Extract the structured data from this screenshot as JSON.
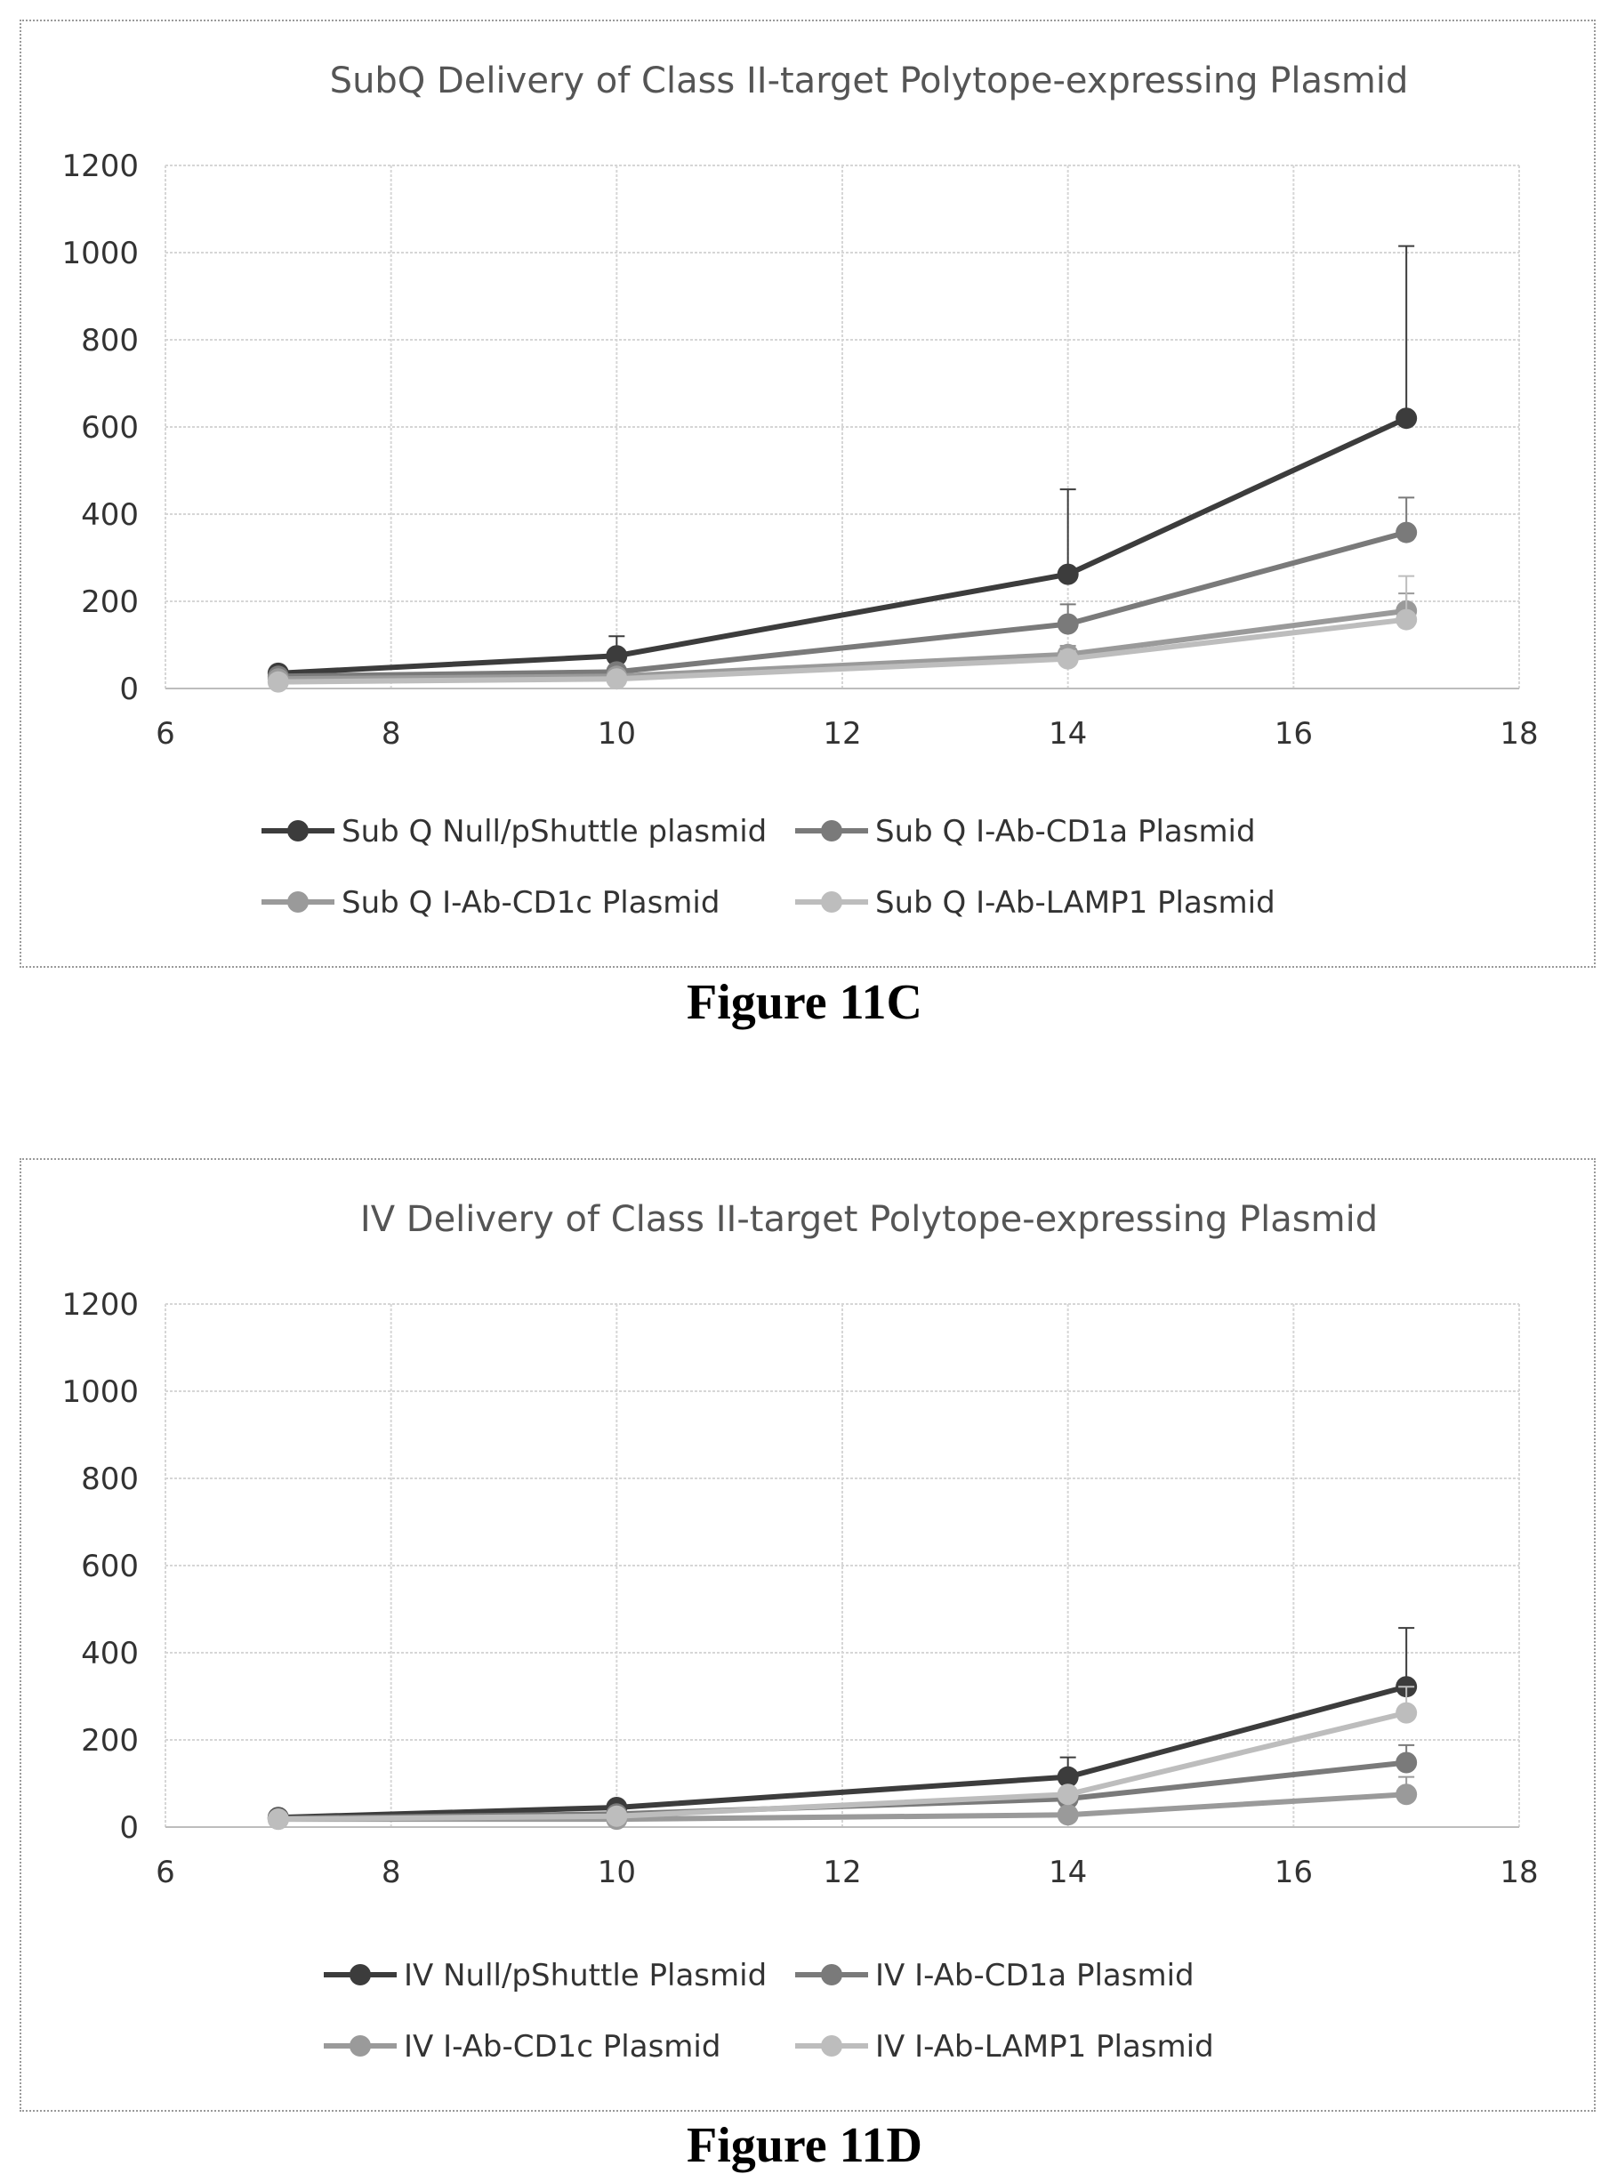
{
  "chart_data": [
    {
      "type": "line",
      "title": "SubQ Delivery of Class II-target Polytope-expressing Plasmid",
      "xlabel": "",
      "ylabel": "",
      "xlim": [
        6,
        18
      ],
      "ylim": [
        0,
        1200
      ],
      "xticks": [
        6,
        8,
        10,
        12,
        14,
        16,
        18
      ],
      "yticks": [
        0,
        200,
        400,
        600,
        800,
        1000,
        1200
      ],
      "grid": true,
      "legend_position": "bottom",
      "x": [
        7,
        10,
        14,
        17
      ],
      "series": [
        {
          "name": "Sub Q Null/pShuttle plasmid",
          "values": [
            35,
            75,
            262,
            620
          ],
          "error": [
            12,
            45,
            195,
            395
          ],
          "color": "#3c3c3c"
        },
        {
          "name": "Sub Q I-Ab-CD1a Plasmid",
          "values": [
            28,
            38,
            148,
            358
          ],
          "error": [
            8,
            15,
            45,
            80
          ],
          "color": "#7a7a7a"
        },
        {
          "name": "Sub Q I-Ab-CD1c Plasmid",
          "values": [
            22,
            28,
            78,
            178
          ],
          "error": [
            6,
            10,
            20,
            40
          ],
          "color": "#9a9a9a"
        },
        {
          "name": "Sub Q I-Ab-LAMP1 Plasmid",
          "values": [
            15,
            22,
            68,
            158
          ],
          "error": [
            5,
            8,
            18,
            100
          ],
          "color": "#bdbdbd"
        }
      ],
      "caption": "Figure 11C"
    },
    {
      "type": "line",
      "title": "IV Delivery of Class II-target Polytope-expressing Plasmid",
      "xlabel": "",
      "ylabel": "",
      "xlim": [
        6,
        18
      ],
      "ylim": [
        0,
        1200
      ],
      "xticks": [
        6,
        8,
        10,
        12,
        14,
        16,
        18
      ],
      "yticks": [
        0,
        200,
        400,
        600,
        800,
        1000,
        1200
      ],
      "grid": true,
      "legend_position": "bottom",
      "x": [
        7,
        10,
        14,
        17
      ],
      "series": [
        {
          "name": "IV Null/pShuttle Plasmid",
          "values": [
            22,
            45,
            115,
            322
          ],
          "error": [
            6,
            12,
            45,
            135
          ],
          "color": "#3c3c3c"
        },
        {
          "name": "IV I-Ab-CD1a Plasmid",
          "values": [
            20,
            30,
            65,
            148
          ],
          "error": [
            5,
            8,
            15,
            40
          ],
          "color": "#7a7a7a"
        },
        {
          "name": "IV I-Ab-CD1c Plasmid",
          "values": [
            18,
            18,
            28,
            75
          ],
          "error": [
            4,
            6,
            8,
            40
          ],
          "color": "#9a9a9a"
        },
        {
          "name": "IV I-Ab-LAMP1 Plasmid",
          "values": [
            18,
            25,
            75,
            262
          ],
          "error": [
            4,
            6,
            15,
            60
          ],
          "color": "#bdbdbd"
        }
      ],
      "caption": "Figure 11D"
    }
  ]
}
